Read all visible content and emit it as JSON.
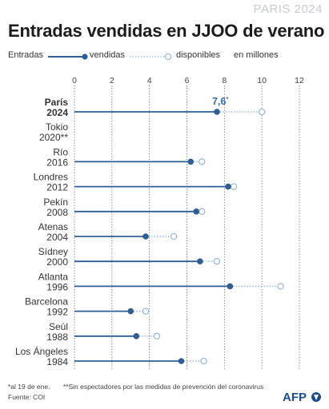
{
  "brand": "PARIS 2024",
  "title": "Entradas vendidas en JJOO de verano",
  "legend": {
    "prefix": "Entradas",
    "sold_label": "vendidas",
    "available_label": "disponibles",
    "units": "en millones"
  },
  "colors": {
    "accent": "#2f5d94",
    "available": "#9bbde0",
    "grid": "#555555",
    "highlight_label": "#2f6fb5"
  },
  "chart_data": {
    "type": "dot-plot",
    "xlim": [
      0,
      12
    ],
    "xticks": [
      0,
      2,
      4,
      6,
      8,
      10,
      12
    ],
    "categories": [
      {
        "lines": [
          "París",
          "2024"
        ],
        "bold": true
      },
      {
        "lines": [
          "Tokio",
          "2020**"
        ],
        "bold": false
      },
      {
        "lines": [
          "Río",
          "2016"
        ],
        "bold": false
      },
      {
        "lines": [
          "Londres",
          "2012"
        ],
        "bold": false
      },
      {
        "lines": [
          "Pekín",
          "2008"
        ],
        "bold": false
      },
      {
        "lines": [
          "Atenas",
          "2004"
        ],
        "bold": false
      },
      {
        "lines": [
          "Sídney",
          "2000"
        ],
        "bold": false
      },
      {
        "lines": [
          "Atlanta",
          "1996"
        ],
        "bold": false
      },
      {
        "lines": [
          "Barcelona",
          "1992"
        ],
        "bold": false
      },
      {
        "lines": [
          "Seúl",
          "1988"
        ],
        "bold": false
      },
      {
        "lines": [
          "Los Ángeles",
          "1984"
        ],
        "bold": false
      }
    ],
    "series": [
      {
        "name": "vendidas",
        "values": [
          7.6,
          null,
          6.2,
          8.2,
          6.5,
          3.8,
          6.7,
          8.3,
          3.0,
          3.3,
          5.7
        ]
      },
      {
        "name": "disponibles",
        "values": [
          10.0,
          null,
          6.8,
          8.5,
          6.8,
          5.3,
          7.6,
          11.0,
          3.8,
          4.4,
          6.9
        ]
      }
    ],
    "annotations": [
      {
        "category_index": 0,
        "text": "7,6",
        "suffix": "*"
      }
    ]
  },
  "footer": {
    "note1": "*al 19 de ene.",
    "note2": "**Sin espectadores por las medidas de prevención del coronavirus",
    "source": "Fuente: COI"
  },
  "logo": {
    "text": "AFP"
  }
}
